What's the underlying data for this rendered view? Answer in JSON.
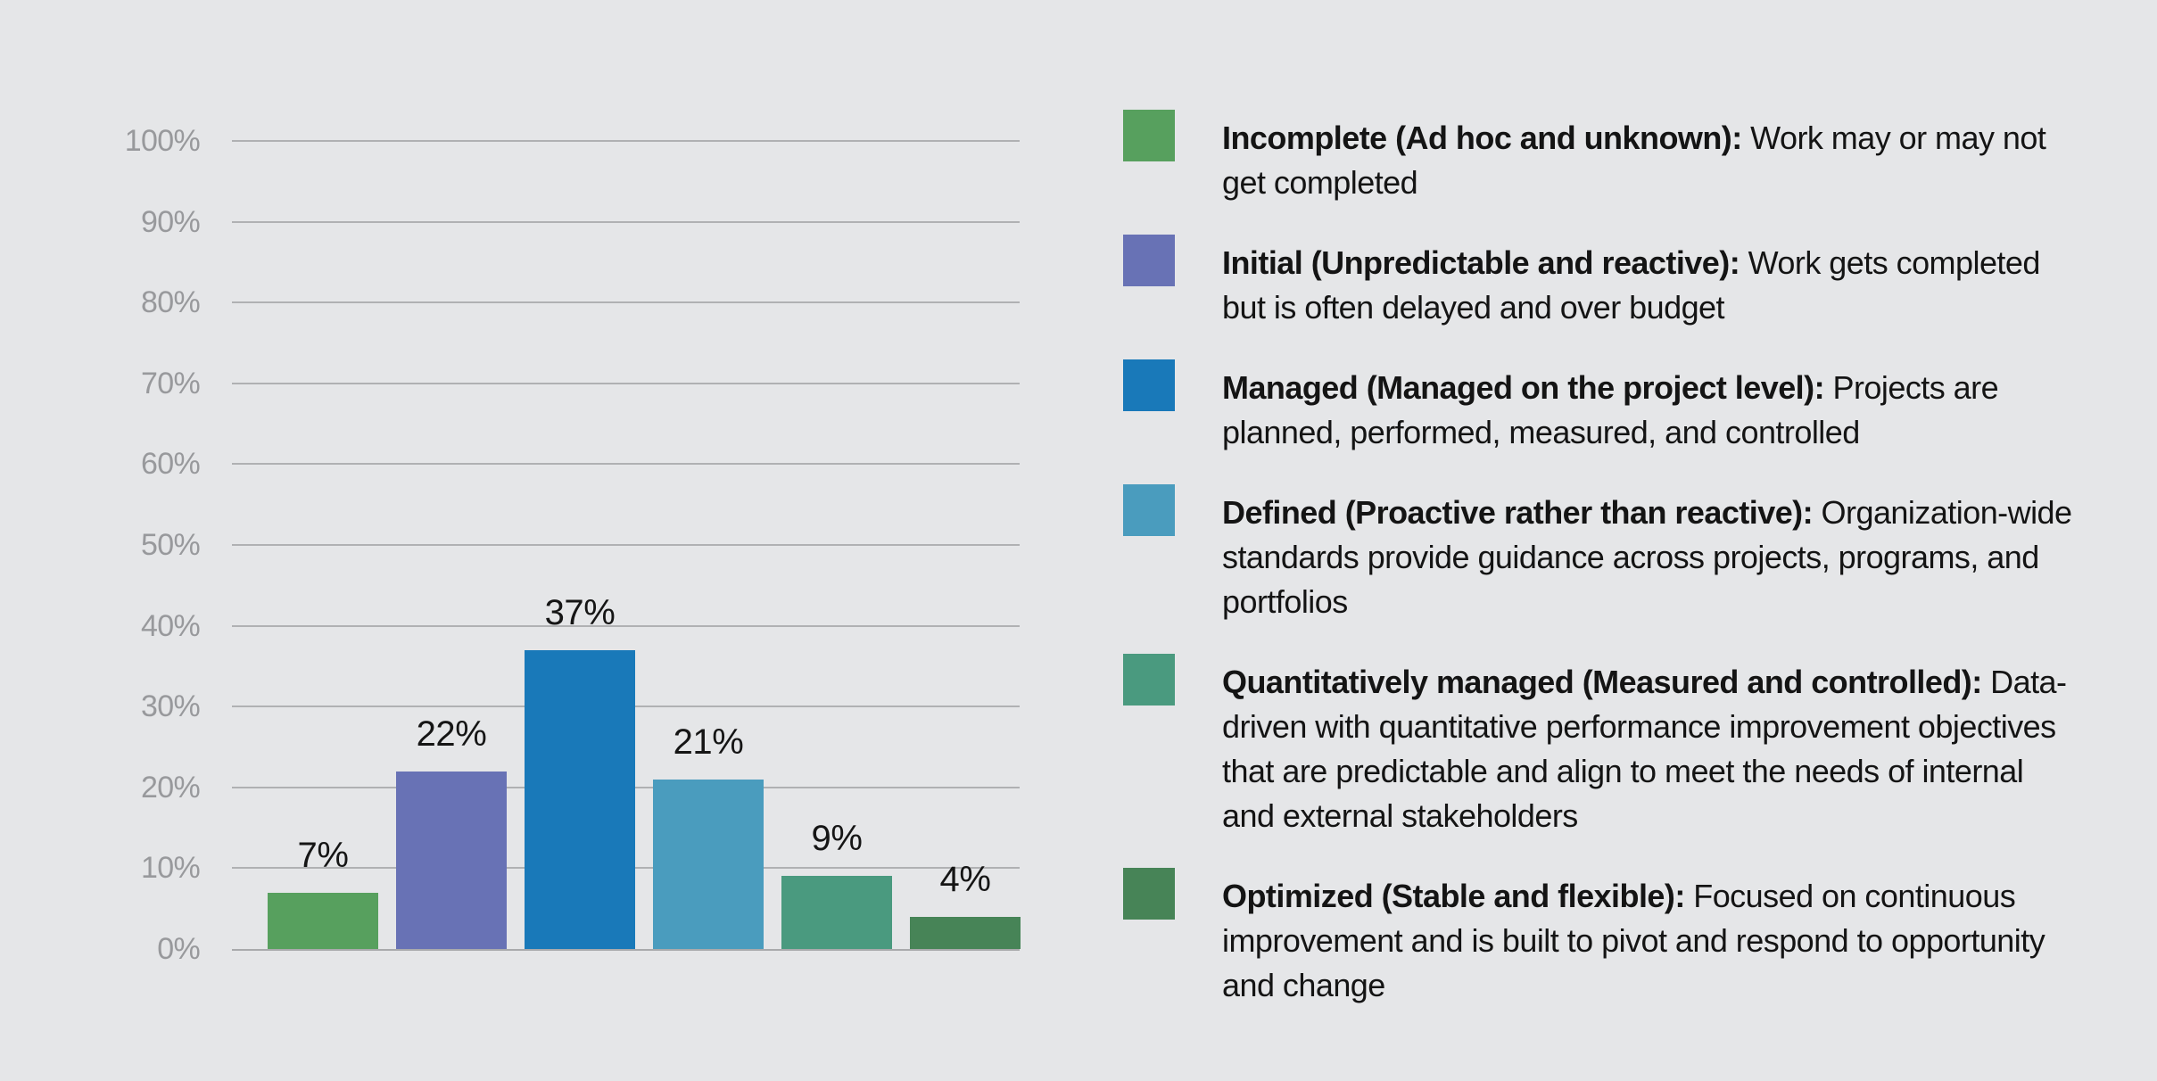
{
  "chart_data": {
    "type": "bar",
    "title": "",
    "xlabel": "",
    "ylabel": "",
    "categories": [
      "Incomplete",
      "Initial",
      "Managed",
      "Defined",
      "Quantitatively managed",
      "Optimized"
    ],
    "values": [
      7,
      22,
      37,
      21,
      9,
      4
    ],
    "value_labels": [
      "7%",
      "22%",
      "37%",
      "21%",
      "9%",
      "4%"
    ],
    "bar_colors": [
      "#57a05e",
      "#6872b5",
      "#1979b9",
      "#4a9cbe",
      "#4a9a7f",
      "#478457"
    ],
    "ylim": [
      0,
      100
    ],
    "ytick_step": 10,
    "ytick_labels": [
      "100%",
      "90%",
      "80%",
      "70%",
      "60%",
      "50%",
      "40%",
      "30%",
      "20%",
      "10%",
      "0%"
    ],
    "grid": true,
    "legend_position": "right"
  },
  "legend": {
    "items": [
      {
        "color": "#57a05e",
        "title": "Incomplete (Ad hoc and unknown):",
        "description": "Work may or may not get completed"
      },
      {
        "color": "#6872b5",
        "title": "Initial (Unpredictable and reactive):",
        "description": "Work gets completed but is often delayed and over budget"
      },
      {
        "color": "#1979b9",
        "title": "Managed (Managed on the project level):",
        "description": "Projects are planned, performed, measured, and controlled"
      },
      {
        "color": "#4a9cbe",
        "title": "Defined (Proactive rather than reactive):",
        "description": "Organization-wide standards provide guidance across projects, programs, and portfolios"
      },
      {
        "color": "#4a9a7f",
        "title": "Quantitatively managed (Measured and controlled):",
        "description": "Data-driven with quantitative performance improvement objectives that are predictable and align to meet the needs of internal and external stakeholders"
      },
      {
        "color": "#478457",
        "title": "Optimized (Stable and flexible):",
        "description": "Focused on continuous improvement and is built to pivot and respond to opportunity and change"
      }
    ]
  },
  "colors": {
    "background": "#e5e6e8",
    "gridline": "#b0b1b3",
    "tick_label": "#98999c",
    "value_label": "#151515",
    "legend_text": "#141414"
  }
}
